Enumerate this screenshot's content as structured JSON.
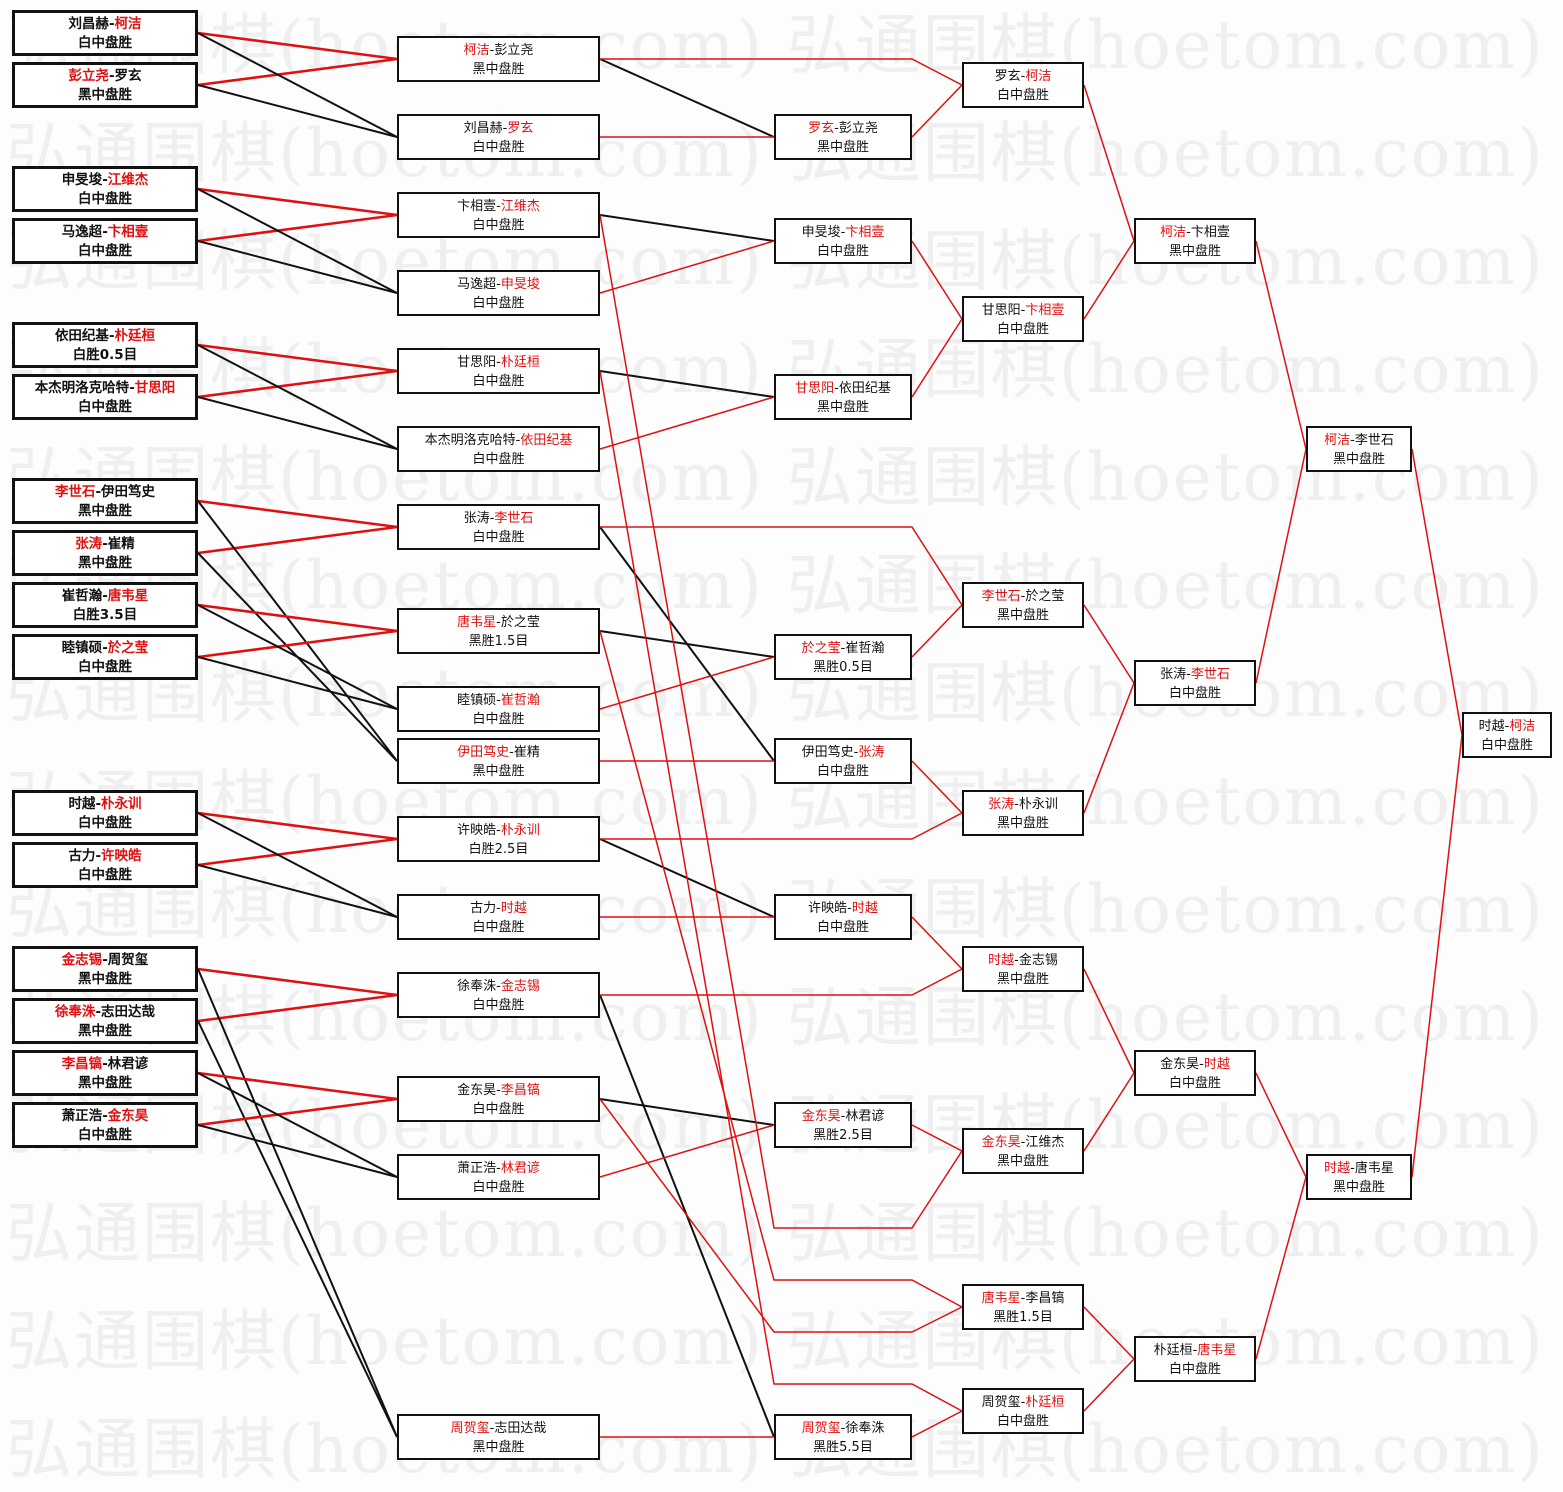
{
  "watermark": "弘通围棋(hoetom.com)",
  "separator": "-",
  "colors": {
    "winner": "#e01010",
    "loser_line": "#111111",
    "winner_line": "#e01010"
  },
  "rounds": [
    {
      "matches": [
        {
          "p1": "刘昌赫",
          "p2": "柯洁",
          "winner": 2,
          "result": "白中盘胜"
        },
        {
          "p1": "彭立尧",
          "p2": "罗玄",
          "winner": 1,
          "result": "黑中盘胜"
        },
        {
          "p1": "申旻埈",
          "p2": "江维杰",
          "winner": 2,
          "result": "白中盘胜"
        },
        {
          "p1": "马逸超",
          "p2": "卞相壹",
          "winner": 2,
          "result": "白中盘胜"
        },
        {
          "p1": "依田纪基",
          "p2": "朴廷桓",
          "winner": 2,
          "result": "白胜0.5目"
        },
        {
          "p1": "本杰明洛克哈特",
          "p2": "甘思阳",
          "winner": 2,
          "result": "白中盘胜"
        },
        {
          "p1": "李世石",
          "p2": "伊田笃史",
          "winner": 1,
          "result": "黑中盘胜"
        },
        {
          "p1": "张涛",
          "p2": "崔精",
          "winner": 1,
          "result": "黑中盘胜"
        },
        {
          "p1": "崔哲瀚",
          "p2": "唐韦星",
          "winner": 2,
          "result": "白胜3.5目"
        },
        {
          "p1": "睦镇硕",
          "p2": "於之莹",
          "winner": 2,
          "result": "白中盘胜"
        },
        {
          "p1": "时越",
          "p2": "朴永训",
          "winner": 2,
          "result": "白中盘胜"
        },
        {
          "p1": "古力",
          "p2": "许映皓",
          "winner": 2,
          "result": "白中盘胜"
        },
        {
          "p1": "金志锡",
          "p2": "周贺玺",
          "winner": 1,
          "result": "黑中盘胜"
        },
        {
          "p1": "徐奉洙",
          "p2": "志田达哉",
          "winner": 1,
          "result": "黑中盘胜"
        },
        {
          "p1": "李昌镐",
          "p2": "林君谚",
          "winner": 1,
          "result": "黑中盘胜"
        },
        {
          "p1": "萧正浩",
          "p2": "金东昊",
          "winner": 2,
          "result": "白中盘胜"
        }
      ]
    },
    {
      "matches": [
        {
          "p1": "柯洁",
          "p2": "彭立尧",
          "winner": 1,
          "result": "黑中盘胜"
        },
        {
          "p1": "刘昌赫",
          "p2": "罗玄",
          "winner": 2,
          "result": "白中盘胜"
        },
        {
          "p1": "卞相壹",
          "p2": "江维杰",
          "winner": 2,
          "result": "白中盘胜"
        },
        {
          "p1": "马逸超",
          "p2": "申旻埈",
          "winner": 2,
          "result": "白中盘胜"
        },
        {
          "p1": "甘思阳",
          "p2": "朴廷桓",
          "winner": 2,
          "result": "白中盘胜"
        },
        {
          "p1": "本杰明洛克哈特",
          "p2": "依田纪基",
          "winner": 2,
          "result": "白中盘胜"
        },
        {
          "p1": "张涛",
          "p2": "李世石",
          "winner": 2,
          "result": "白中盘胜"
        },
        {
          "p1": "唐韦星",
          "p2": "於之莹",
          "winner": 1,
          "result": "黑胜1.5目"
        },
        {
          "p1": "睦镇硕",
          "p2": "崔哲瀚",
          "winner": 2,
          "result": "白中盘胜"
        },
        {
          "p1": "伊田笃史",
          "p2": "崔精",
          "winner": 1,
          "result": "黑中盘胜"
        },
        {
          "p1": "许映皓",
          "p2": "朴永训",
          "winner": 2,
          "result": "白胜2.5目"
        },
        {
          "p1": "古力",
          "p2": "时越",
          "winner": 2,
          "result": "白中盘胜"
        },
        {
          "p1": "徐奉洙",
          "p2": "金志锡",
          "winner": 2,
          "result": "白中盘胜"
        },
        {
          "p1": "金东昊",
          "p2": "李昌镐",
          "winner": 2,
          "result": "白中盘胜"
        },
        {
          "p1": "萧正浩",
          "p2": "林君谚",
          "winner": 2,
          "result": "白中盘胜"
        },
        {
          "p1": "周贺玺",
          "p2": "志田达哉",
          "winner": 1,
          "result": "黑中盘胜"
        }
      ]
    },
    {
      "matches": [
        {
          "p1": "罗玄",
          "p2": "彭立尧",
          "winner": 1,
          "result": "黑中盘胜"
        },
        {
          "p1": "申旻埈",
          "p2": "卞相壹",
          "winner": 2,
          "result": "白中盘胜"
        },
        {
          "p1": "甘思阳",
          "p2": "依田纪基",
          "winner": 1,
          "result": "黑中盘胜"
        },
        {
          "p1": "於之莹",
          "p2": "崔哲瀚",
          "winner": 1,
          "result": "黑胜0.5目"
        },
        {
          "p1": "伊田笃史",
          "p2": "张涛",
          "winner": 2,
          "result": "白中盘胜"
        },
        {
          "p1": "许映皓",
          "p2": "时越",
          "winner": 2,
          "result": "白中盘胜"
        },
        {
          "p1": "金东昊",
          "p2": "林君谚",
          "winner": 1,
          "result": "黑胜2.5目"
        },
        {
          "p1": "周贺玺",
          "p2": "徐奉洙",
          "winner": 1,
          "result": "黑胜5.5目"
        }
      ]
    },
    {
      "matches": [
        {
          "p1": "罗玄",
          "p2": "柯洁",
          "winner": 2,
          "result": "白中盘胜"
        },
        {
          "p1": "甘思阳",
          "p2": "卞相壹",
          "winner": 2,
          "result": "白中盘胜"
        },
        {
          "p1": "李世石",
          "p2": "於之莹",
          "winner": 1,
          "result": "黑中盘胜"
        },
        {
          "p1": "张涛",
          "p2": "朴永训",
          "winner": 1,
          "result": "黑中盘胜"
        },
        {
          "p1": "时越",
          "p2": "金志锡",
          "winner": 1,
          "result": "黑中盘胜"
        },
        {
          "p1": "金东昊",
          "p2": "江维杰",
          "winner": 1,
          "result": "黑中盘胜"
        },
        {
          "p1": "唐韦星",
          "p2": "李昌镐",
          "winner": 1,
          "result": "黑胜1.5目"
        },
        {
          "p1": "周贺玺",
          "p2": "朴廷桓",
          "winner": 2,
          "result": "白中盘胜"
        }
      ]
    },
    {
      "matches": [
        {
          "p1": "柯洁",
          "p2": "卞相壹",
          "winner": 1,
          "result": "黑中盘胜"
        },
        {
          "p1": "张涛",
          "p2": "李世石",
          "winner": 2,
          "result": "白中盘胜"
        },
        {
          "p1": "金东昊",
          "p2": "时越",
          "winner": 2,
          "result": "白中盘胜"
        },
        {
          "p1": "朴廷桓",
          "p2": "唐韦星",
          "winner": 2,
          "result": "白中盘胜"
        }
      ]
    },
    {
      "matches": [
        {
          "p1": "柯洁",
          "p2": "李世石",
          "winner": 1,
          "result": "黑中盘胜"
        },
        {
          "p1": "时越",
          "p2": "唐韦星",
          "winner": 1,
          "result": "黑中盘胜"
        }
      ]
    },
    {
      "matches": [
        {
          "p1": "时越",
          "p2": "柯洁",
          "winner": 2,
          "result": "白中盘胜"
        }
      ]
    }
  ]
}
